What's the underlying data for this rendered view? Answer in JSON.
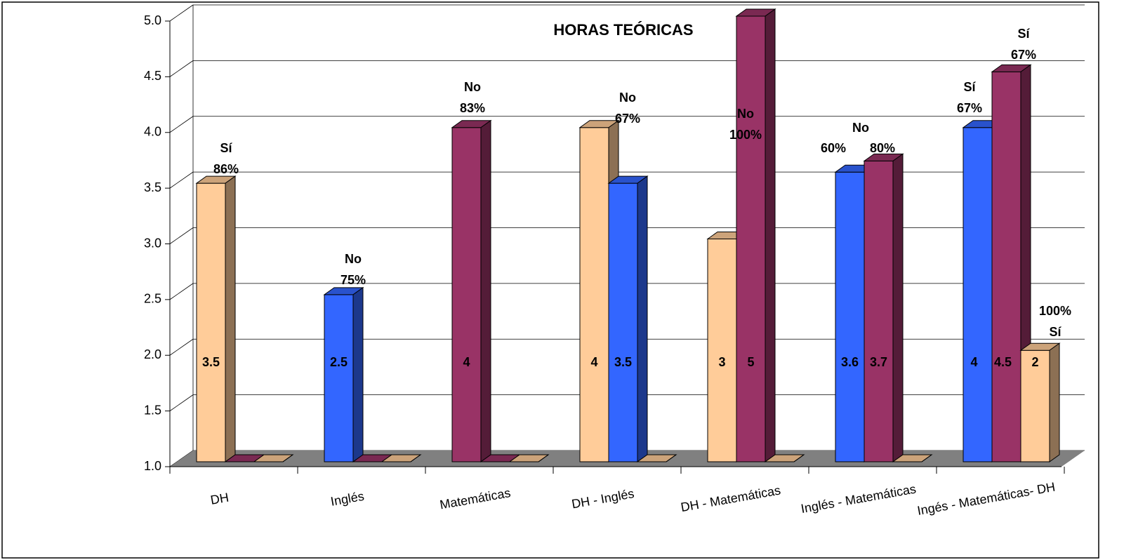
{
  "chart_data": {
    "type": "bar3d",
    "title": "HORAS TEÓRICAS",
    "categories": [
      "DH",
      "Inglés",
      "Matemáticas",
      "DH - Inglés",
      "DH - Matemáticas",
      "Inglés - Matemáticas",
      "Ingés - Matemáticas- DH"
    ],
    "series": [
      {
        "values": [
          3.5,
          2.5,
          4,
          4,
          3,
          3.6,
          4
        ],
        "value_labels": [
          "3.5",
          "2.5",
          "4",
          "4",
          "3",
          "3.6",
          "4"
        ],
        "colors": [
          "#FFCC99",
          "#3366FF",
          "#993366",
          "#FFCC99",
          "#FFCC99",
          "#3366FF",
          "#3366FF"
        ]
      },
      {
        "values": [
          1,
          1,
          1,
          3.5,
          5,
          3.7,
          4.5
        ],
        "value_labels": [
          null,
          null,
          null,
          "3.5",
          "5",
          "3.7",
          "4.5"
        ],
        "colors": [
          "#993366",
          "#993366",
          "#993366",
          "#3366FF",
          "#993366",
          "#993366",
          "#993366"
        ]
      },
      {
        "values": [
          1,
          1,
          1,
          1,
          1,
          1,
          2
        ],
        "value_labels": [
          null,
          null,
          null,
          null,
          null,
          null,
          "2"
        ],
        "colors": [
          "#FFCC99",
          "#FFCC99",
          "#FFCC99",
          "#FFCC99",
          "#FFCC99",
          "#FFCC99",
          "#FFCC99"
        ]
      }
    ],
    "annotations": [
      [
        "Sí",
        "86%"
      ],
      [
        "No",
        "75%"
      ],
      [
        "No",
        "83%"
      ],
      [
        "No",
        "67%"
      ],
      [
        "No",
        "100%"
      ],
      [
        "No"
      ],
      [
        "60%"
      ],
      [
        "80%"
      ],
      [
        "Sí",
        "67%"
      ],
      [
        "Sí",
        "67%"
      ],
      [
        "100%",
        "Sí"
      ]
    ],
    "ylim": [
      1,
      5
    ],
    "yticks": [
      {
        "value": 1,
        "label": "1.0"
      },
      {
        "value": 1.5,
        "label": "1.5"
      },
      {
        "value": 2,
        "label": "2.0"
      },
      {
        "value": 2.5,
        "label": "2.5"
      },
      {
        "value": 3,
        "label": "3.0"
      },
      {
        "value": 3.5,
        "label": "3.5"
      },
      {
        "value": 4,
        "label": "4.0"
      },
      {
        "value": 4.5,
        "label": "4.5"
      },
      {
        "value": 5,
        "label": "5.0"
      }
    ],
    "grid": true,
    "floor_color": "#808080"
  }
}
